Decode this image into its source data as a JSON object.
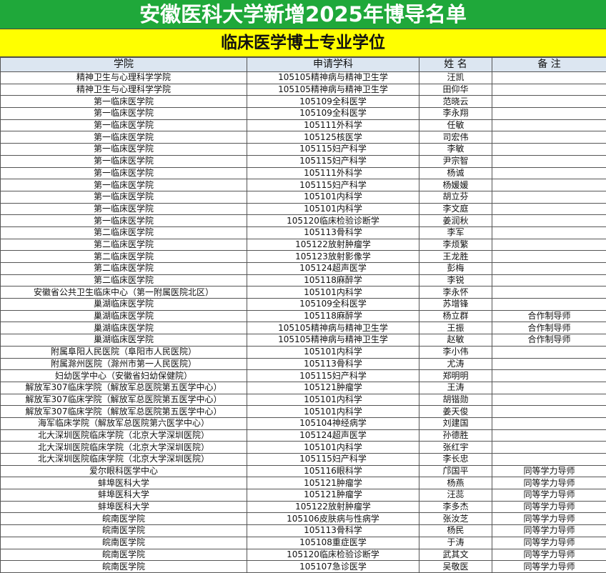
{
  "title": "安徽医科大学新增2025年博导名单",
  "subtitle": "临床医学博士专业学位",
  "colors": {
    "title_bg": "#1fa83a",
    "subtitle_bg": "#ffff00",
    "header_bg": "#dce6f1"
  },
  "headers": [
    "学院",
    "申请学科",
    "姓 名",
    "备 注"
  ],
  "rows": [
    [
      "精神卫生与心理科学学院",
      "105105精神病与精神卫生学",
      "汪凯",
      ""
    ],
    [
      "精神卫生与心理科学学院",
      "105105精神病与精神卫生学",
      "田仰华",
      ""
    ],
    [
      "第一临床医学院",
      "105109全科医学",
      "范晓云",
      ""
    ],
    [
      "第一临床医学院",
      "105109全科医学",
      "李永翔",
      ""
    ],
    [
      "第一临床医学院",
      "105111外科学",
      "任敏",
      ""
    ],
    [
      "第一临床医学院",
      "105125核医学",
      "司宏伟",
      ""
    ],
    [
      "第一临床医学院",
      "105115妇产科学",
      "李敏",
      ""
    ],
    [
      "第一临床医学院",
      "105115妇产科学",
      "尹宗智",
      ""
    ],
    [
      "第一临床医学院",
      "105111外科学",
      "杨诚",
      ""
    ],
    [
      "第一临床医学院",
      "105115妇产科学",
      "杨媛媛",
      ""
    ],
    [
      "第一临床医学院",
      "105101内科学",
      "胡立芬",
      ""
    ],
    [
      "第一临床医学院",
      "105101内科学",
      "李文庭",
      ""
    ],
    [
      "第一临床医学院",
      "105120临床检验诊断学",
      "姜润秋",
      ""
    ],
    [
      "第二临床医学院",
      "105113骨科学",
      "李军",
      ""
    ],
    [
      "第二临床医学院",
      "105122放射肿瘤学",
      "李烦繁",
      ""
    ],
    [
      "第二临床医学院",
      "105123放射影像学",
      "王龙胜",
      ""
    ],
    [
      "第二临床医学院",
      "105124超声医学",
      "彭梅",
      ""
    ],
    [
      "第二临床医学院",
      "105118麻醉学",
      "李锐",
      ""
    ],
    [
      "安徽省公共卫生临床中心（第一附属医院北区）",
      "105101内科学",
      "李永怀",
      ""
    ],
    [
      "巢湖临床医学院",
      "105109全科医学",
      "苏增锋",
      ""
    ],
    [
      "巢湖临床医学院",
      "105118麻醉学",
      "杨立群",
      "合作制导师"
    ],
    [
      "巢湖临床医学院",
      "105105精神病与精神卫生学",
      "王振",
      "合作制导师"
    ],
    [
      "巢湖临床医学院",
      "105105精神病与精神卫生学",
      "赵敏",
      "合作制导师"
    ],
    [
      "附属阜阳人民医院（阜阳市人民医院）",
      "105101内科学",
      "李小伟",
      ""
    ],
    [
      "附属滁州医院（滁州市第一人民医院）",
      "105113骨科学",
      "尤涛",
      ""
    ],
    [
      "妇幼医学中心（安徽省妇幼保健院）",
      "105115妇产科学",
      "郑明明",
      ""
    ],
    [
      "解放军307临床学院（解放军总医院第五医学中心）",
      "105121肿瘤学",
      "王涛",
      ""
    ],
    [
      "解放军307临床学院（解放军总医院第五医学中心）",
      "105101内科学",
      "胡锴勋",
      ""
    ],
    [
      "解放军307临床学院（解放军总医院第五医学中心）",
      "105101内科学",
      "姜天俊",
      ""
    ],
    [
      "海军临床学院（解放军总医院第六医学中心）",
      "105104神经病学",
      "刘建国",
      ""
    ],
    [
      "北大深圳医院临床学院（北京大学深圳医院）",
      "105124超声医学",
      "孙德胜",
      ""
    ],
    [
      "北大深圳医院临床学院（北京大学深圳医院）",
      "105101内科学",
      "张红宇",
      ""
    ],
    [
      "北大深圳医院临床学院（北京大学深圳医院）",
      "105115妇产科学",
      "李长忠",
      ""
    ],
    [
      "爱尔眼科医学中心",
      "105116眼科学",
      "邝国平",
      "同等学力导师"
    ],
    [
      "蚌埠医科大学",
      "105121肿瘤学",
      "杨燕",
      "同等学力导师"
    ],
    [
      "蚌埠医科大学",
      "105121肿瘤学",
      "汪蕊",
      "同等学力导师"
    ],
    [
      "蚌埠医科大学",
      "105122放射肿瘤学",
      "李多杰",
      "同等学力导师"
    ],
    [
      "皖南医学院",
      "105106皮肤病与性病学",
      "张汝芝",
      "同等学力导师"
    ],
    [
      "皖南医学院",
      "105113骨科学",
      "杨民",
      "同等学力导师"
    ],
    [
      "皖南医学院",
      "105108重症医学",
      "于涛",
      "同等学力导师"
    ],
    [
      "皖南医学院",
      "105120临床检验诊断学",
      "武其文",
      "同等学力导师"
    ],
    [
      "皖南医学院",
      "105107急诊医学",
      "吴敬医",
      "同等学力导师"
    ]
  ]
}
